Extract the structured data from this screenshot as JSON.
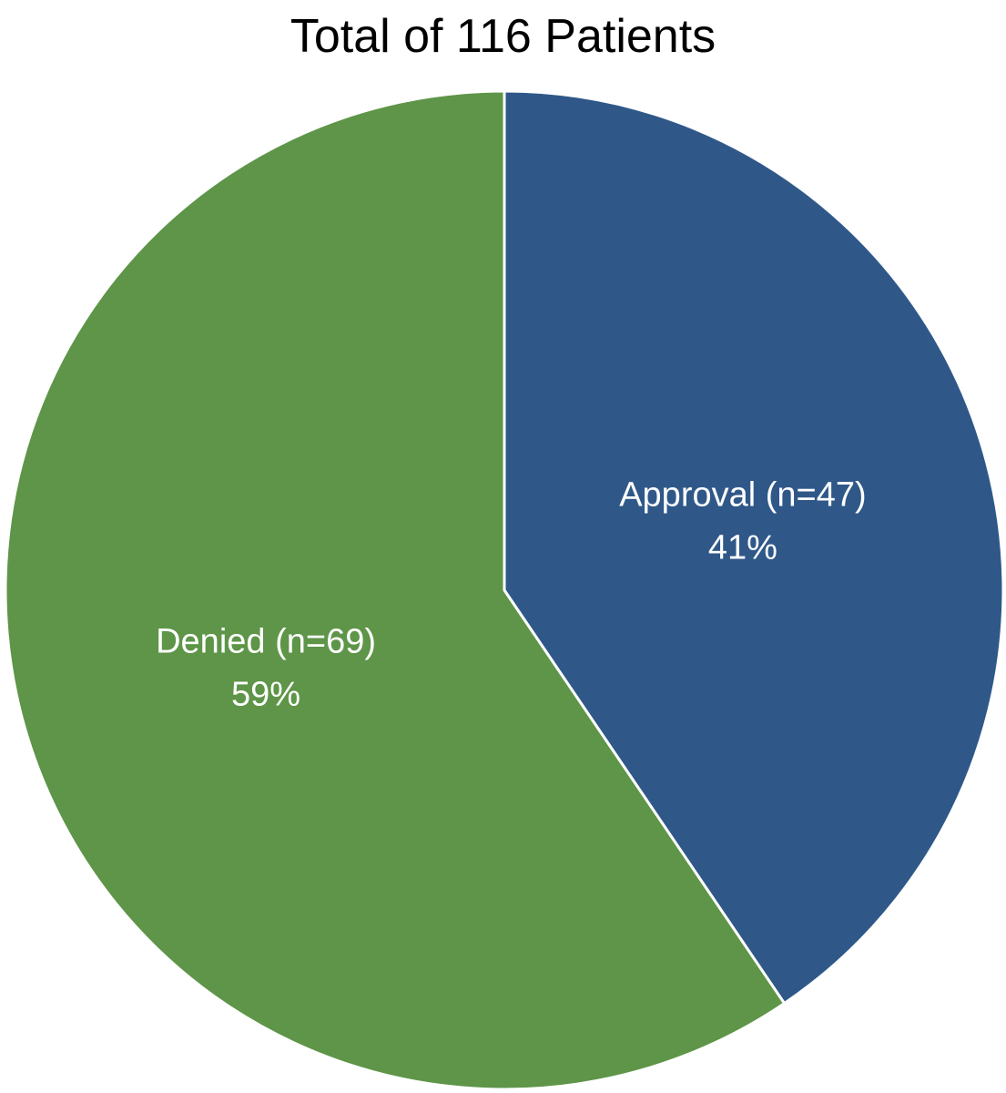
{
  "chart_data": {
    "type": "pie",
    "title": "Total of 116 Patients",
    "categories": [
      "Approval",
      "Denied"
    ],
    "values": [
      47,
      69
    ],
    "labels": [
      "Approval (n=47)",
      "Denied (n=69)"
    ],
    "percent_labels": [
      "41%",
      "59%"
    ],
    "colors": [
      "#2f5889",
      "#5e9548"
    ],
    "start_angle": "12 o'clock",
    "direction": "clockwise",
    "legend": "none"
  }
}
